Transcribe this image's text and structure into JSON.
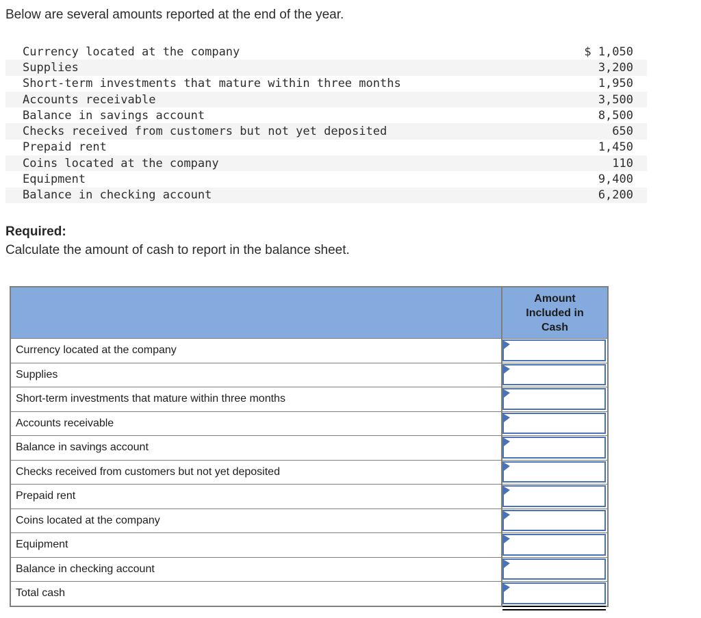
{
  "intro": "Below are several amounts reported at the end of the year.",
  "required": {
    "label": "Required:",
    "instruction": "Calculate the amount of cash to report in the balance sheet."
  },
  "amounts": {
    "rows": [
      {
        "label": "Currency located at the company",
        "amount": "$ 1,050"
      },
      {
        "label": "Supplies",
        "amount": "3,200"
      },
      {
        "label": "Short-term investments that mature within three months",
        "amount": "1,950"
      },
      {
        "label": "Accounts receivable",
        "amount": "3,500"
      },
      {
        "label": "Balance in savings account",
        "amount": "8,500"
      },
      {
        "label": "Checks received from customers but not yet deposited",
        "amount": "650"
      },
      {
        "label": "Prepaid rent",
        "amount": "1,450"
      },
      {
        "label": "Coins located at the company",
        "amount": "110"
      },
      {
        "label": "Equipment",
        "amount": "9,400"
      },
      {
        "label": "Balance in checking account",
        "amount": "6,200"
      }
    ]
  },
  "answer_table": {
    "header_lines": [
      "Amount",
      "Included in",
      "Cash"
    ],
    "rows": [
      {
        "label": "Currency located at the company",
        "value": ""
      },
      {
        "label": "Supplies",
        "value": ""
      },
      {
        "label": "Short-term investments that mature within three months",
        "value": ""
      },
      {
        "label": "Accounts receivable",
        "value": ""
      },
      {
        "label": "Balance in savings account",
        "value": ""
      },
      {
        "label": "Checks received from customers but not yet deposited",
        "value": ""
      },
      {
        "label": "Prepaid rent",
        "value": ""
      },
      {
        "label": "Coins located at the company",
        "value": ""
      },
      {
        "label": "Equipment",
        "value": ""
      },
      {
        "label": "Balance in checking account",
        "value": ""
      },
      {
        "label": "Total cash",
        "value": ""
      }
    ]
  },
  "colors": {
    "header_bg": "#85aadd",
    "input_border": "#4a73b7",
    "table_border": "#7f7f7f",
    "stripe_bg": "#f4f4f4",
    "total_rule": "#000000"
  }
}
